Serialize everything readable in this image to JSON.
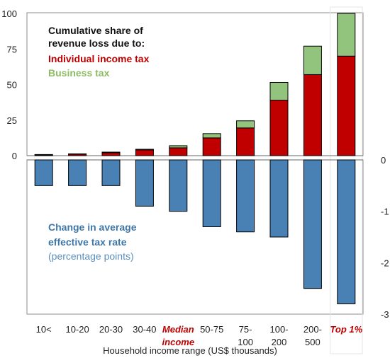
{
  "chart_data": {
    "type": "bar",
    "categories": [
      "10<",
      "10-20",
      "20-30",
      "30-40",
      "Median income",
      "50-75",
      "75-100",
      "100-200",
      "200-500",
      "Top 1%"
    ],
    "category_lines": [
      [
        "10<"
      ],
      [
        "10-20"
      ],
      [
        "20-30"
      ],
      [
        "30-40"
      ],
      [
        "Median",
        "income"
      ],
      [
        "50-75"
      ],
      [
        "75-",
        "100"
      ],
      [
        "100-",
        "200"
      ],
      [
        "200-",
        "500"
      ],
      [
        "Top 1%"
      ]
    ],
    "highlighted_categories": [
      "Median income",
      "Top 1%"
    ],
    "xlabel": "Household income range (US$ thousands)",
    "top_panel": {
      "stacked": true,
      "ylim": [
        0,
        100
      ],
      "yticks": [
        0,
        25,
        50,
        75,
        100
      ],
      "series": [
        {
          "name": "Individual income tax",
          "color": "#c00000",
          "values": [
            0.5,
            1,
            2,
            4,
            5.5,
            12.5,
            19.5,
            39,
            57,
            70
          ]
        },
        {
          "name": "Business tax",
          "color": "#93c47d",
          "values": [
            0.3,
            0.3,
            0.5,
            0.5,
            1.5,
            3,
            5,
            12.5,
            20,
            30
          ]
        }
      ],
      "legend": {
        "title_lines": [
          "Cumulative share of",
          "revenue loss due to:"
        ],
        "entries": [
          "Individual income tax",
          "Business tax"
        ]
      }
    },
    "bottom_panel": {
      "ylim": [
        -3,
        0
      ],
      "yticks": [
        0,
        -1,
        -2,
        -3
      ],
      "series": [
        {
          "name": "Change in average effective tax rate",
          "color": "#4a81b4",
          "values": [
            -0.5,
            -0.5,
            -0.5,
            -0.9,
            -1.0,
            -1.3,
            -1.4,
            -1.5,
            -2.5,
            -2.8
          ]
        }
      ],
      "label_lines": [
        "Change in average",
        "effective tax rate"
      ],
      "unit_label": "(percentage points)"
    }
  }
}
